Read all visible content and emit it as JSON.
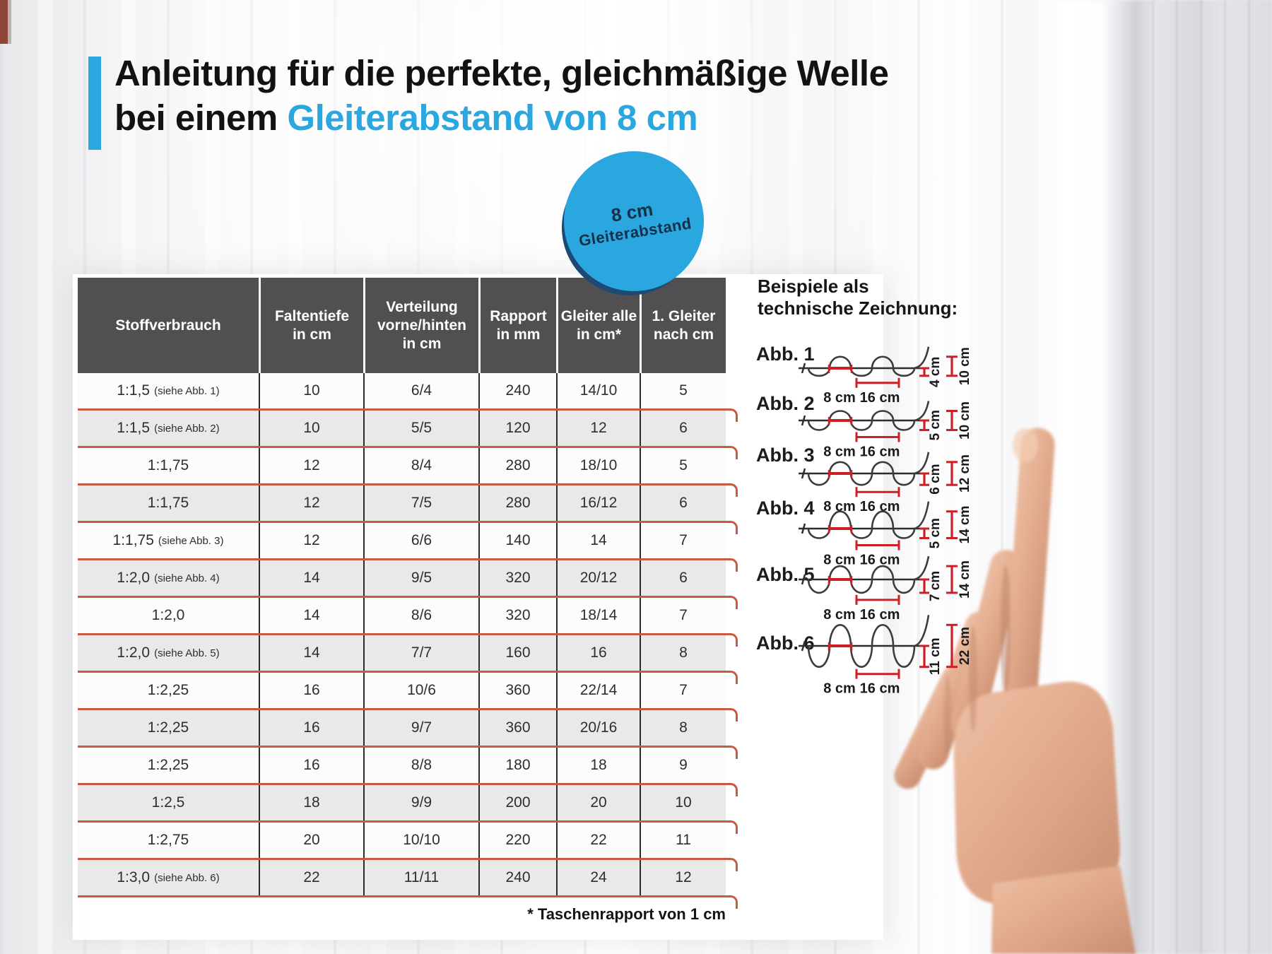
{
  "title": {
    "line1": "Anleitung für die perfekte, gleichmäßige Welle",
    "line2_black": "bei einem ",
    "line2_blue": "Gleiterabstand von 8 cm"
  },
  "badge": {
    "top": "8 cm",
    "bottom": "Gleiterabstand"
  },
  "colors": {
    "accent_blue": "#2aa7de",
    "badge_rim": "#1d4a74",
    "badge_text": "#12304a",
    "header_bg": "#505052",
    "row_alt": "#e9e9e9",
    "separator_red": "#c65a43",
    "drawing_red": "#cc2026",
    "ink": "#1a1a1a"
  },
  "table": {
    "headers": [
      [
        "Stoffverbrauch"
      ],
      [
        "Faltentiefe",
        "in cm"
      ],
      [
        "Verteilung",
        "vorne/hinten",
        "in cm"
      ],
      [
        "Rapport",
        "in mm"
      ],
      [
        "Gleiter alle",
        "in cm*"
      ],
      [
        "1. Gleiter",
        "nach cm"
      ]
    ],
    "rows": [
      {
        "ratio": "1:1,5",
        "note": "(siehe Abb. 1)",
        "faltentiefe": "10",
        "verteilung": "6/4",
        "rapport": "240",
        "gleiter": "14/10",
        "erster": "5"
      },
      {
        "ratio": "1:1,5",
        "note": "(siehe Abb. 2)",
        "faltentiefe": "10",
        "verteilung": "5/5",
        "rapport": "120",
        "gleiter": "12",
        "erster": "6"
      },
      {
        "ratio": "1:1,75",
        "note": "",
        "faltentiefe": "12",
        "verteilung": "8/4",
        "rapport": "280",
        "gleiter": "18/10",
        "erster": "5"
      },
      {
        "ratio": "1:1,75",
        "note": "",
        "faltentiefe": "12",
        "verteilung": "7/5",
        "rapport": "280",
        "gleiter": "16/12",
        "erster": "6"
      },
      {
        "ratio": "1:1,75",
        "note": "(siehe Abb. 3)",
        "faltentiefe": "12",
        "verteilung": "6/6",
        "rapport": "140",
        "gleiter": "14",
        "erster": "7"
      },
      {
        "ratio": "1:2,0",
        "note": "(siehe Abb. 4)",
        "faltentiefe": "14",
        "verteilung": "9/5",
        "rapport": "320",
        "gleiter": "20/12",
        "erster": "6"
      },
      {
        "ratio": "1:2,0",
        "note": "",
        "faltentiefe": "14",
        "verteilung": "8/6",
        "rapport": "320",
        "gleiter": "18/14",
        "erster": "7"
      },
      {
        "ratio": "1:2,0",
        "note": "(siehe Abb. 5)",
        "faltentiefe": "14",
        "verteilung": "7/7",
        "rapport": "160",
        "gleiter": "16",
        "erster": "8"
      },
      {
        "ratio": "1:2,25",
        "note": "",
        "faltentiefe": "16",
        "verteilung": "10/6",
        "rapport": "360",
        "gleiter": "22/14",
        "erster": "7"
      },
      {
        "ratio": "1:2,25",
        "note": "",
        "faltentiefe": "16",
        "verteilung": "9/7",
        "rapport": "360",
        "gleiter": "20/16",
        "erster": "8"
      },
      {
        "ratio": "1:2,25",
        "note": "",
        "faltentiefe": "16",
        "verteilung": "8/8",
        "rapport": "180",
        "gleiter": "18",
        "erster": "9"
      },
      {
        "ratio": "1:2,5",
        "note": "",
        "faltentiefe": "18",
        "verteilung": "9/9",
        "rapport": "200",
        "gleiter": "20",
        "erster": "10"
      },
      {
        "ratio": "1:2,75",
        "note": "",
        "faltentiefe": "20",
        "verteilung": "10/10",
        "rapport": "220",
        "gleiter": "22",
        "erster": "11"
      },
      {
        "ratio": "1:3,0",
        "note": "(siehe Abb. 6)",
        "faltentiefe": "22",
        "verteilung": "11/11",
        "rapport": "240",
        "gleiter": "24",
        "erster": "12"
      }
    ],
    "footnote": "* Taschenrapport von 1 cm"
  },
  "examples": {
    "heading_line1": "Beispiele als",
    "heading_line2": "technische Zeichnung:",
    "items": [
      {
        "label": "Abb. 1",
        "base": "8 cm",
        "period": "16 cm",
        "inner": "4 cm",
        "outer": "10 cm",
        "inner_cm": 4,
        "outer_cm": 10
      },
      {
        "label": "Abb. 2",
        "base": "8 cm",
        "period": "16 cm",
        "inner": "5 cm",
        "outer": "10 cm",
        "inner_cm": 5,
        "outer_cm": 10
      },
      {
        "label": "Abb. 3",
        "base": "8 cm",
        "period": "16 cm",
        "inner": "6 cm",
        "outer": "12 cm",
        "inner_cm": 6,
        "outer_cm": 12
      },
      {
        "label": "Abb. 4",
        "base": "8 cm",
        "period": "16 cm",
        "inner": "5 cm",
        "outer": "14 cm",
        "inner_cm": 5,
        "outer_cm": 14
      },
      {
        "label": "Abb. 5",
        "base": "8 cm",
        "period": "16 cm",
        "inner": "7 cm",
        "outer": "14 cm",
        "inner_cm": 7,
        "outer_cm": 14
      },
      {
        "label": "Abb. 6",
        "base": "8 cm",
        "period": "16 cm",
        "inner": "11 cm",
        "outer": "22 cm",
        "inner_cm": 11,
        "outer_cm": 22
      }
    ]
  }
}
